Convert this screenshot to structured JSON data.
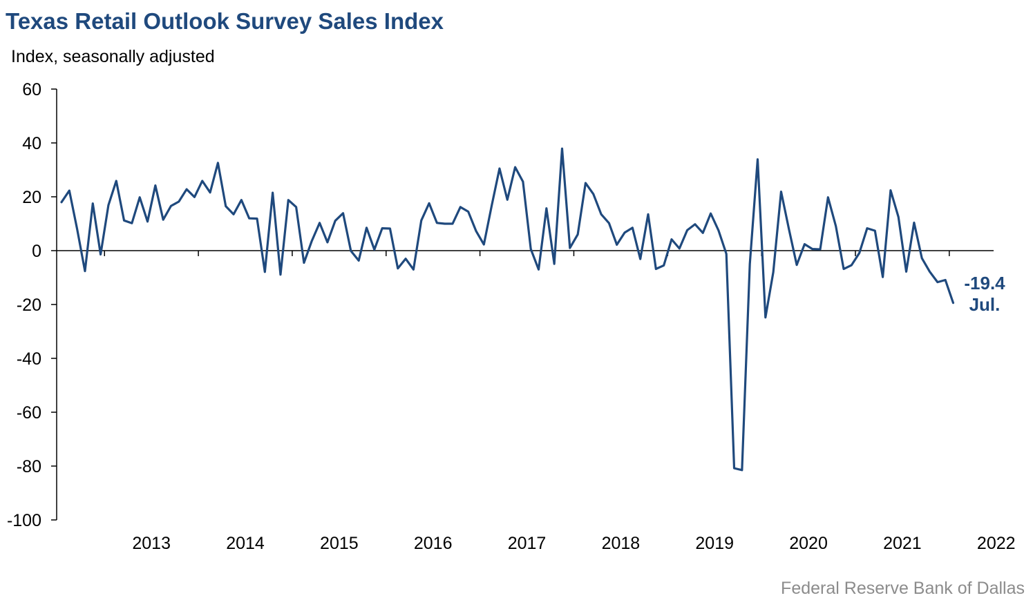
{
  "header": {
    "title": "Texas Retail Outlook Survey Sales Index",
    "subtitle": "Index, seasonally adjusted"
  },
  "footer": {
    "source": "Federal Reserve Bank of Dallas"
  },
  "colors": {
    "line": "#1f497d",
    "title": "#1f497d",
    "axis": "#000000",
    "source": "#8c8c8c"
  },
  "chart_data": {
    "type": "line",
    "title": "Texas Retail Outlook Survey Sales Index",
    "ylabel": "Index, seasonally adjusted",
    "xlabel": "",
    "ylim": [
      -100,
      60
    ],
    "yticks": [
      60,
      40,
      20,
      0,
      -20,
      -40,
      -60,
      -80,
      -100
    ],
    "x_tick_labels": [
      "2013",
      "2014",
      "2015",
      "2016",
      "2017",
      "2018",
      "2019",
      "2020",
      "2021",
      "2022"
    ],
    "grid": false,
    "legend": "none",
    "start": "2012-07",
    "end": "2022-07",
    "series": [
      {
        "values": [
          18.0,
          22.3,
          8.0,
          -7.6,
          17.5,
          -1.4,
          16.9,
          25.9,
          11.2,
          10.2,
          19.8,
          10.8,
          24.2,
          11.5,
          16.6,
          18.2,
          22.8,
          19.9,
          25.9,
          21.6,
          32.6,
          16.5,
          13.5,
          18.8,
          12.0,
          11.9,
          -7.9,
          21.5,
          -8.9,
          18.8,
          16.2,
          -4.5,
          3.6,
          10.3,
          3.1,
          11.1,
          13.9,
          -0.1,
          -3.7,
          8.5,
          0.4,
          8.3,
          8.2,
          -6.6,
          -3.0,
          -7.0,
          11.2,
          17.6,
          10.3,
          10.0,
          10.0,
          16.2,
          14.5,
          7.3,
          2.3,
          16.7,
          30.5,
          18.9,
          31.0,
          25.6,
          0.6,
          -7.0,
          15.7,
          -4.9,
          37.9,
          1.0,
          6.0,
          25.1,
          21.0,
          13.5,
          10.2,
          2.2,
          6.7,
          8.5,
          -3.1,
          13.5,
          -6.8,
          -5.5,
          4.2,
          0.8,
          7.6,
          9.8,
          6.6,
          13.8,
          7.5,
          -1.2,
          -80.8,
          -81.5,
          -5.0,
          33.9,
          -24.8,
          -8.0,
          21.9,
          8.0,
          -5.3,
          2.4,
          0.6,
          0.5,
          19.8,
          9.1,
          -6.8,
          -5.4,
          -0.9,
          8.3,
          7.4,
          -9.8,
          22.4,
          12.5,
          -7.8,
          10.4,
          -2.8,
          -7.8,
          -11.7,
          -10.9,
          -19.4
        ]
      }
    ],
    "annotations": [
      {
        "value": "-19.4",
        "period": "Jul."
      }
    ]
  }
}
